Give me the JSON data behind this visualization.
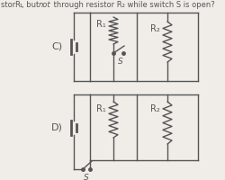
{
  "bg_color": "#f0ede8",
  "line_color": "#555555",
  "label_C": "C)",
  "label_D": "D)",
  "R1_label": "R₁",
  "R2_label": "R₂",
  "S_label": "S",
  "title": "stor R₁, but not through resistor R₂ while switch S is open?"
}
